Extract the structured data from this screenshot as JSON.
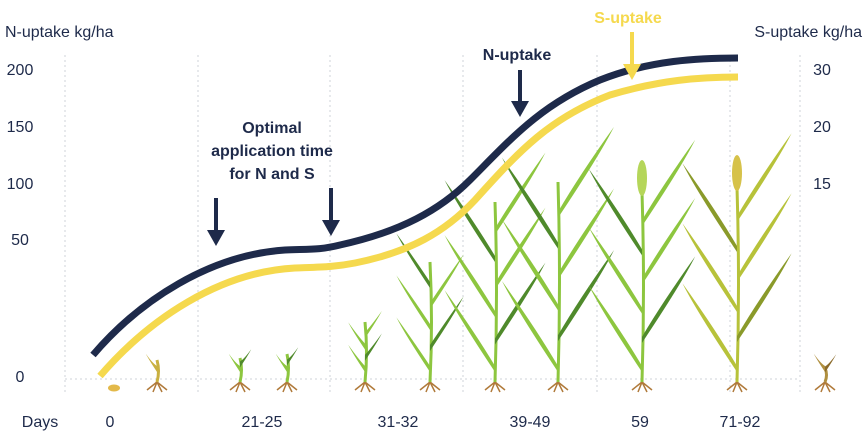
{
  "left_axis": {
    "title": "N-uptake kg/ha",
    "ticks": [
      200,
      150,
      100,
      50,
      0
    ]
  },
  "right_axis": {
    "title": "S-uptake kg/ha",
    "ticks": [
      30,
      20,
      15
    ]
  },
  "x_axis": {
    "title": "Days",
    "categories": [
      "0",
      "21-25",
      "31-32",
      "39-49",
      "59",
      "71-92"
    ]
  },
  "annotations": {
    "optimal_time": [
      "Optimal",
      "application time",
      "for N and S"
    ],
    "n_uptake": "N-uptake",
    "s_uptake": "S-uptake"
  }
}
